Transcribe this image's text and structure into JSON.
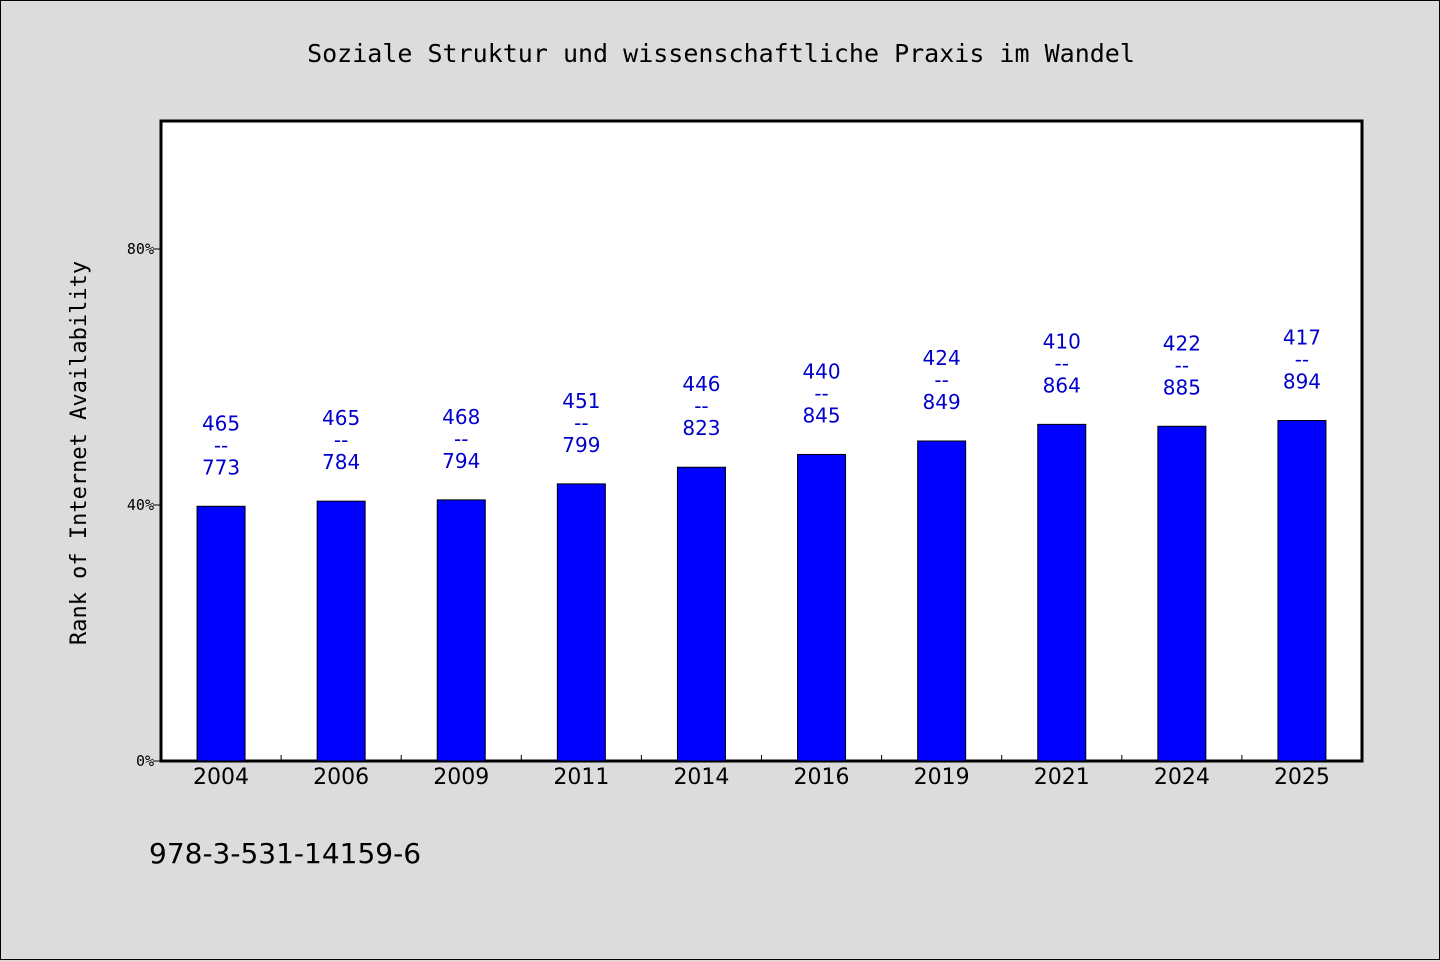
{
  "chart_data": {
    "type": "bar",
    "title": "Soziale Struktur und wissenschaftliche Praxis im Wandel",
    "xlabel": "",
    "ylabel": "Rank of Internet Availability",
    "categories": [
      "2004",
      "2006",
      "2009",
      "2011",
      "2014",
      "2016",
      "2019",
      "2021",
      "2024",
      "2025"
    ],
    "values": [
      0.398,
      0.406,
      0.408,
      0.433,
      0.459,
      0.479,
      0.5,
      0.526,
      0.523,
      0.532
    ],
    "annotations": [
      {
        "top": "465",
        "sep": "--",
        "bottom": "773"
      },
      {
        "top": "465",
        "sep": "--",
        "bottom": "784"
      },
      {
        "top": "468",
        "sep": "--",
        "bottom": "794"
      },
      {
        "top": "451",
        "sep": "--",
        "bottom": "799"
      },
      {
        "top": "446",
        "sep": "--",
        "bottom": "823"
      },
      {
        "top": "440",
        "sep": "--",
        "bottom": "845"
      },
      {
        "top": "424",
        "sep": "--",
        "bottom": "849"
      },
      {
        "top": "410",
        "sep": "--",
        "bottom": "864"
      },
      {
        "top": "422",
        "sep": "--",
        "bottom": "885"
      },
      {
        "top": "417",
        "sep": "--",
        "bottom": "894"
      }
    ],
    "ylim": [
      0,
      1.0
    ],
    "yticks": [
      0,
      0.4,
      0.8
    ],
    "ytick_labels": [
      "0%",
      "40%",
      "80%"
    ],
    "grid": false,
    "bar_color": "#0000ff",
    "label_color": "#0000cc"
  },
  "footer": {
    "isbn": "978-3-531-14159-6"
  }
}
